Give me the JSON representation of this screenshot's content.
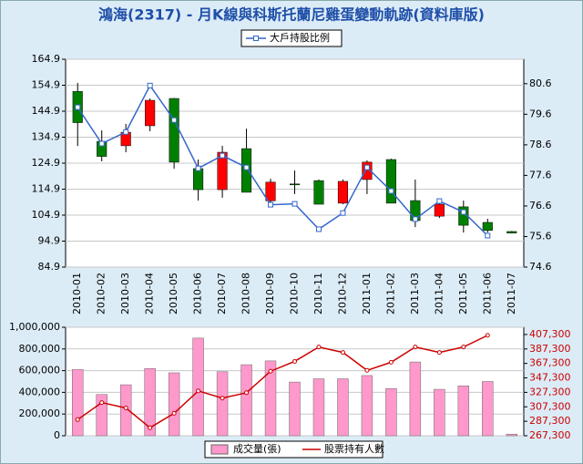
{
  "chart_data": [
    {
      "type": "candlestick",
      "title": "鴻海(2317) - 月K線與科斯托蘭尼雞蛋變動軌跡(資料庫版)",
      "categories": [
        "2010-01",
        "2010-02",
        "2010-03",
        "2010-04",
        "2010-05",
        "2010-06",
        "2010-07",
        "2010-08",
        "2010-09",
        "2010-10",
        "2010-11",
        "2010-12",
        "2011-01",
        "2011-02",
        "2011-03",
        "2011-04",
        "2011-05",
        "2011-06",
        "2011-07"
      ],
      "open": [
        152.5,
        133.3,
        131.6,
        139.3,
        149.8,
        122.8,
        114.7,
        130.5,
        110.4,
        116.9,
        118.2,
        109.5,
        118.6,
        126.3,
        110.5,
        104.5,
        108.1,
        102.1,
        98.6
      ],
      "high": [
        155.8,
        137.5,
        140.0,
        149.8,
        150.0,
        126.3,
        131.6,
        138.2,
        118.9,
        122.1,
        118.6,
        118.6,
        126.0,
        126.6,
        118.6,
        111.2,
        110.5,
        103.5,
        98.8
      ],
      "low": [
        131.5,
        125.6,
        129.1,
        137.2,
        122.8,
        110.5,
        111.6,
        113.7,
        109.5,
        113.0,
        109.1,
        109.1,
        113.0,
        109.5,
        100.3,
        103.8,
        98.2,
        98.2,
        97.9
      ],
      "close": [
        140.5,
        127.5,
        136.8,
        149.1,
        125.3,
        114.7,
        129.1,
        113.7,
        117.6,
        116.6,
        109.1,
        117.9,
        125.3,
        109.5,
        102.8,
        109.1,
        101.0,
        99.0,
        98.0
      ],
      "up_color": "#ff0000",
      "down_color": "#008000",
      "ylim": [
        84.9,
        164.9
      ],
      "yticks": [
        84.9,
        94.9,
        104.9,
        114.9,
        124.9,
        134.9,
        144.9,
        154.9,
        164.9
      ],
      "y2lim": [
        74.6,
        81.4
      ],
      "y2ticks": [
        74.6,
        75.6,
        76.6,
        77.6,
        78.6,
        79.6,
        80.6
      ],
      "grid": true,
      "series": [
        {
          "name": "大戶持股比例",
          "color": "#3366cc",
          "axis": "y2",
          "values": [
            79.83,
            78.64,
            79.02,
            80.54,
            79.41,
            77.83,
            78.25,
            77.86,
            76.64,
            76.67,
            75.84,
            76.37,
            77.86,
            77.09,
            76.17,
            76.76,
            76.4,
            75.63,
            null
          ]
        }
      ]
    },
    {
      "type": "bar",
      "ylim": [
        0,
        1000000
      ],
      "yticks": [
        0,
        {
          "value": 200000,
          "label": "200,000"
        },
        {
          "value": 400000,
          "label": "400,000"
        },
        {
          "value": 600000,
          "label": "600,000"
        },
        {
          "value": 800000,
          "label": "800,000"
        },
        {
          "value": 1000000,
          "label": "1,000,000"
        }
      ],
      "y2lim": [
        267300,
        417300
      ],
      "y2ticks": [
        {
          "value": 267300,
          "label": "267,300"
        },
        {
          "value": 287300,
          "label": "287,300"
        },
        {
          "value": 307300,
          "label": "307,300"
        },
        {
          "value": 327300,
          "label": "327,300"
        },
        {
          "value": 347300,
          "label": "347,300"
        },
        {
          "value": 367300,
          "label": "367,300"
        },
        {
          "value": 387300,
          "label": "387,300"
        },
        {
          "value": 407300,
          "label": "407,300"
        }
      ],
      "grid": true,
      "series": [
        {
          "name": "成交量(張)",
          "color": "#ff99cc",
          "values": [
            610000,
            380000,
            470000,
            620000,
            580000,
            900000,
            590000,
            655000,
            690000,
            495000,
            525000,
            525000,
            555000,
            435000,
            680000,
            428000,
            460000,
            500000,
            15000
          ]
        },
        {
          "name": "股票持有人數",
          "color": "#cc0000",
          "axis": "y2",
          "values": [
            289600,
            313100,
            305700,
            278400,
            298300,
            329300,
            319300,
            326800,
            356500,
            370100,
            390000,
            382500,
            357700,
            368900,
            390000,
            382500,
            390000,
            406100,
            null
          ]
        }
      ]
    }
  ]
}
